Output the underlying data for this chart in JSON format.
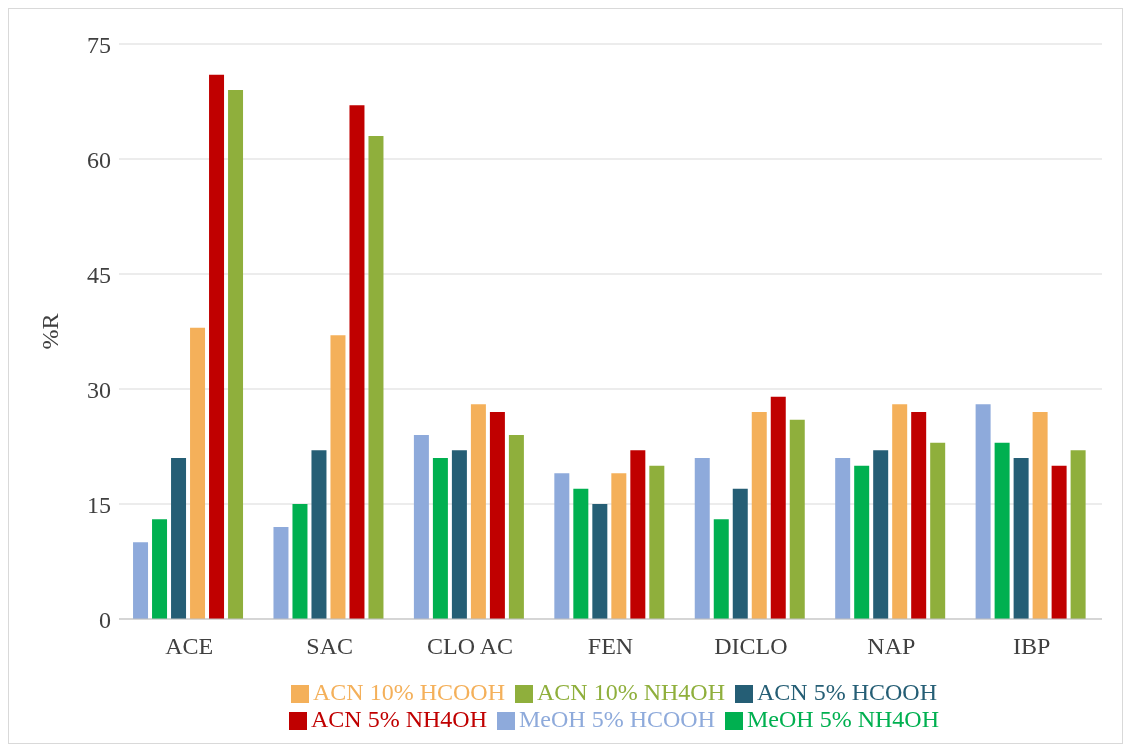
{
  "chart_data": {
    "type": "bar",
    "ylabel": "%R",
    "categories": [
      "ACE",
      "SAC",
      "CLO AC",
      "FEN",
      "DICLO",
      "NAP",
      "IBP"
    ],
    "series": [
      {
        "name": "MeOH 5% HCOOH",
        "color": "#8eaadb",
        "values": [
          10,
          12,
          24,
          19,
          21,
          21,
          28
        ]
      },
      {
        "name": "MeOH 5% NH4OH",
        "color": "#00b050",
        "values": [
          13,
          15,
          21,
          17,
          13,
          20,
          23
        ]
      },
      {
        "name": "ACN 5% HCOOH",
        "color": "#255e75",
        "values": [
          21,
          22,
          22,
          15,
          17,
          22,
          21
        ]
      },
      {
        "name": "ACN 10% HCOOH",
        "color": "#f4b05a",
        "values": [
          38,
          37,
          28,
          19,
          27,
          28,
          27
        ]
      },
      {
        "name": "ACN 5% NH4OH",
        "color": "#c00000",
        "values": [
          71,
          67,
          27,
          22,
          29,
          27,
          20
        ]
      },
      {
        "name": "ACN 10% NH4OH",
        "color": "#8faf3c",
        "values": [
          69,
          63,
          24,
          20,
          26,
          23,
          22
        ]
      }
    ],
    "ylim": [
      0,
      75
    ],
    "yticks": [
      0,
      15,
      30,
      45,
      60,
      75
    ],
    "grid": "y",
    "legend": "bottom"
  }
}
